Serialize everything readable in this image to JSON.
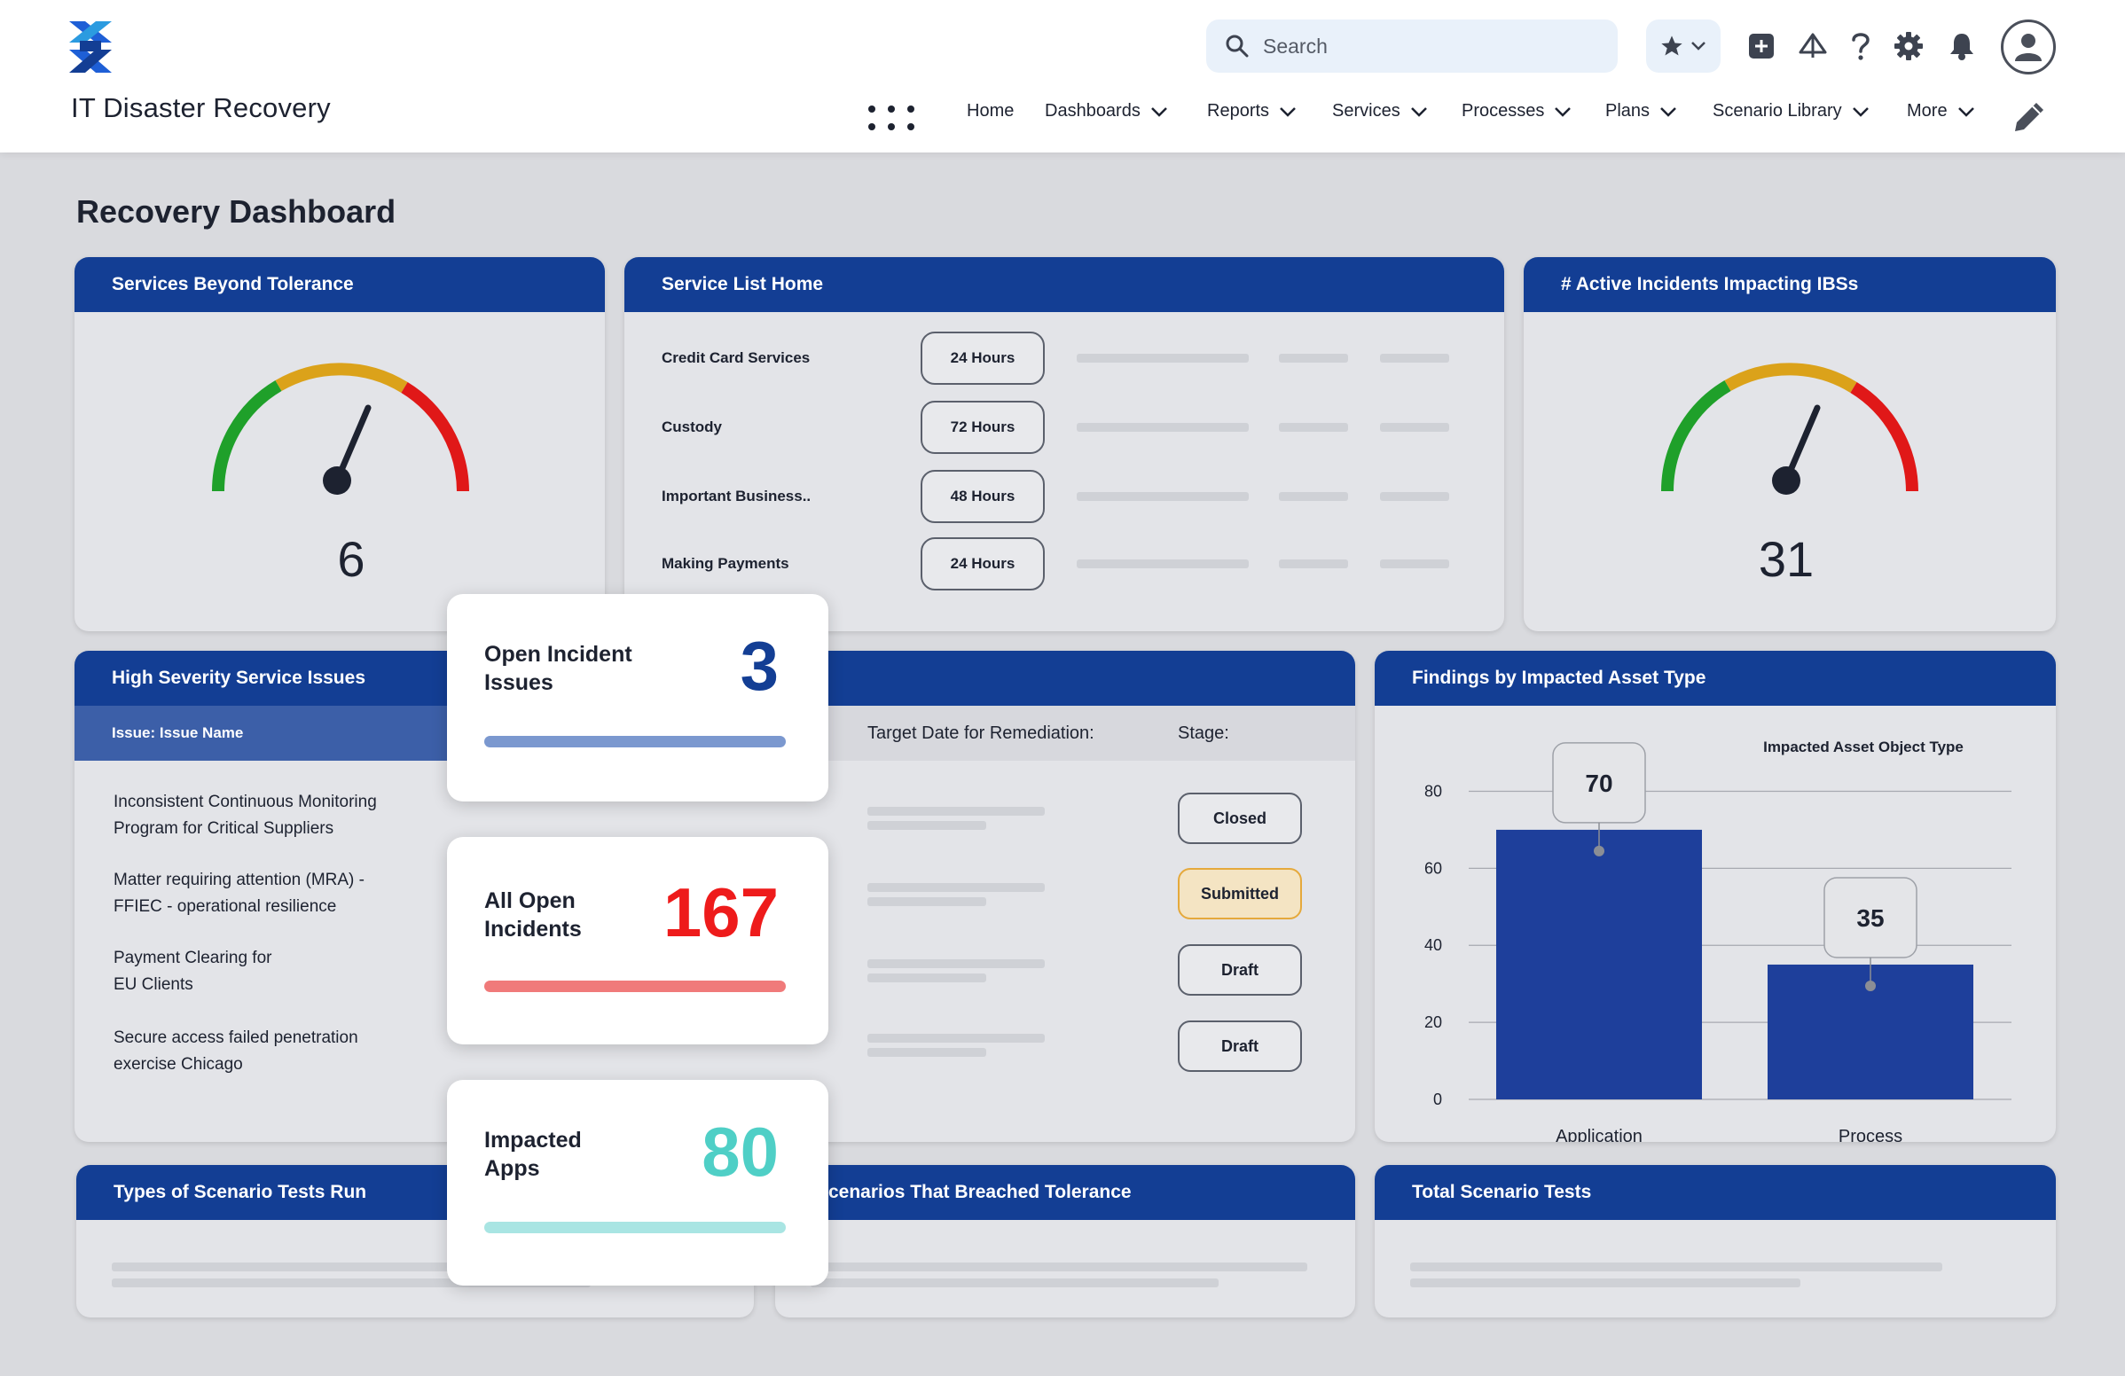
{
  "header": {
    "app_title": "IT Disaster Recovery",
    "search_placeholder": "Search",
    "nav": [
      {
        "label": "Home"
      },
      {
        "label": "Dashboards"
      },
      {
        "label": "Reports"
      },
      {
        "label": "Services"
      },
      {
        "label": "Processes"
      },
      {
        "label": "Plans"
      },
      {
        "label": "Scenario Library"
      },
      {
        "label": "More"
      }
    ]
  },
  "page": {
    "title": "Recovery Dashboard"
  },
  "cards": {
    "services_beyond_tolerance": {
      "title": "Services Beyond Tolerance",
      "value": "6"
    },
    "service_list_home": {
      "title": "Service List Home",
      "rows": [
        {
          "name": "Credit Card Services",
          "duration": "24 Hours"
        },
        {
          "name": "Custody",
          "duration": "72 Hours"
        },
        {
          "name": "Important Business..",
          "duration": "48 Hours"
        },
        {
          "name": "Making Payments",
          "duration": "24 Hours"
        }
      ]
    },
    "active_incidents": {
      "title": "# Active Incidents Impacting IBSs",
      "value": "31"
    },
    "high_severity": {
      "title": "High Severity Service Issues",
      "col_issue": "Issue: Issue Name",
      "col_target": "Target Date for Remediation:",
      "col_stage": "Stage:",
      "rows": [
        {
          "line1": "Inconsistent Continuous Monitoring",
          "line2": "Program for Critical Suppliers",
          "stage": "Closed"
        },
        {
          "line1": "Matter requiring attention (MRA) -",
          "line2": "FFIEC - operational resilience",
          "stage": "Submitted"
        },
        {
          "line1": "Payment Clearing for",
          "line2": "EU Clients",
          "stage": "Draft"
        },
        {
          "line1": "Secure access failed penetration",
          "line2": "exercise Chicago",
          "stage": "Draft"
        }
      ]
    },
    "findings": {
      "title": "Findings by Impacted Asset Type"
    },
    "types_of_tests": {
      "title": "Types of Scenario Tests Run"
    },
    "breached": {
      "title": "Scenarios That Breached Tolerance",
      "title_visible": "cenarios That Breached Tolerance"
    },
    "total_tests": {
      "title": "Total Scenario Tests"
    }
  },
  "stats": [
    {
      "label_line1": "Open Incident",
      "label_line2": "Issues",
      "value": "3",
      "color": "#133e94",
      "bar_color": "#7b98cf"
    },
    {
      "label_line1": "All Open",
      "label_line2": "Incidents",
      "value": "167",
      "color": "#ee1b1b",
      "bar_color": "#f07a7a"
    },
    {
      "label_line1": "Impacted",
      "label_line2": "Apps",
      "value": "80",
      "color": "#4fcfc6",
      "bar_color": "#a9e5e3"
    }
  ],
  "chart_data": {
    "type": "bar",
    "title": "Findings by Impacted Asset Type",
    "legend_title": "Impacted Asset Object Type",
    "categories": [
      "Application",
      "Process"
    ],
    "values": [
      70,
      35
    ],
    "yticks": [
      0,
      20,
      40,
      60,
      80
    ],
    "ylim": [
      0,
      80
    ],
    "xlabel": "",
    "ylabel": "",
    "bar_color": "#1e3f9b"
  }
}
